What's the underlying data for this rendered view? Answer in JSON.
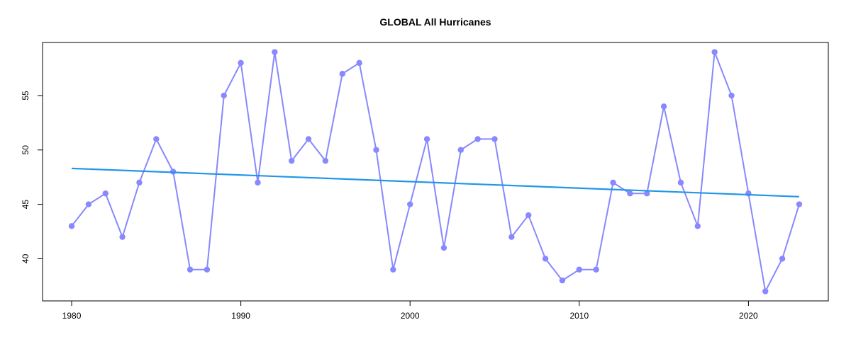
{
  "chart_data": {
    "type": "line",
    "title": "GLOBAL All Hurricanes",
    "xlabel": "",
    "ylabel": "",
    "x": [
      1980,
      1981,
      1982,
      1983,
      1984,
      1985,
      1986,
      1987,
      1988,
      1989,
      1990,
      1991,
      1992,
      1993,
      1994,
      1995,
      1996,
      1997,
      1998,
      1999,
      2000,
      2001,
      2002,
      2003,
      2004,
      2005,
      2006,
      2007,
      2008,
      2009,
      2010,
      2011,
      2012,
      2013,
      2014,
      2015,
      2016,
      2017,
      2018,
      2019,
      2020,
      2021,
      2022,
      2023
    ],
    "series": [
      {
        "values": [
          43,
          45,
          46,
          42,
          47,
          51,
          48,
          39,
          39,
          55,
          58,
          47,
          59,
          49,
          51,
          49,
          57,
          58,
          50,
          39,
          45,
          51,
          41,
          50,
          51,
          51,
          42,
          44,
          40,
          38,
          39,
          39,
          47,
          46,
          46,
          54,
          47,
          43,
          59,
          55,
          46,
          37,
          40,
          45
        ],
        "color": "#8888ff",
        "markers": true
      }
    ],
    "trend_line": {
      "x": [
        1980,
        2023
      ],
      "y": [
        48.3,
        45.7
      ],
      "color": "#2196e8"
    },
    "xlim": [
      1978.28,
      2024.72
    ],
    "ylim": [
      36.12,
      59.88
    ],
    "x_ticks": [
      "1980",
      "1990",
      "2000",
      "2010",
      "2020"
    ],
    "y_ticks": [
      "40",
      "45",
      "50",
      "55"
    ],
    "grid": false,
    "legend": "none"
  }
}
